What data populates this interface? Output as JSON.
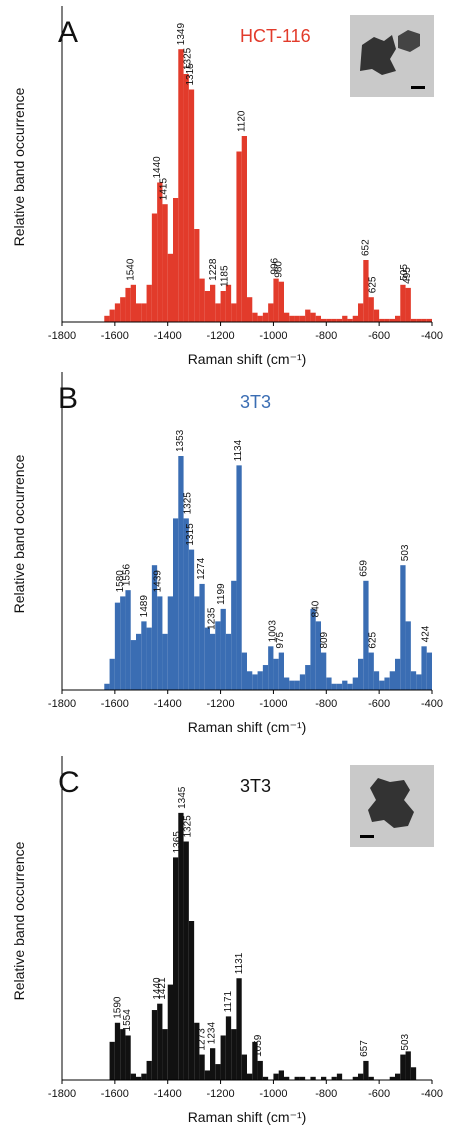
{
  "chart_data": [
    {
      "type": "histogram",
      "panel": "A",
      "title": "HCT-116",
      "color": "#e23b2b",
      "xlabel": "Raman shift (cm⁻¹)",
      "ylabel": "Relative band occurrence",
      "xlim": [
        -1800,
        -400
      ],
      "ylim": [
        0,
        100
      ],
      "xticks": [
        -1800,
        -1600,
        -1400,
        -1200,
        -1000,
        -800,
        -600,
        -400
      ],
      "bins": [
        -1660,
        -1640,
        -1620,
        -1600,
        -1580,
        -1560,
        -1540,
        -1520,
        -1500,
        -1480,
        -1460,
        -1440,
        -1420,
        -1400,
        -1380,
        -1360,
        -1340,
        -1320,
        -1300,
        -1280,
        -1260,
        -1240,
        -1220,
        -1200,
        -1180,
        -1160,
        -1140,
        -1120,
        -1100,
        -1080,
        -1060,
        -1040,
        -1020,
        -1000,
        -980,
        -960,
        -940,
        -920,
        -900,
        -880,
        -860,
        -840,
        -820,
        -800,
        -780,
        -760,
        -740,
        -720,
        -700,
        -680,
        -660,
        -640,
        -620,
        -600,
        -580,
        -560,
        -540,
        -520,
        -500,
        -480,
        -460,
        -440,
        -420,
        -400
      ],
      "values": [
        0,
        2,
        4,
        6,
        8,
        11,
        12,
        6,
        6,
        12,
        35,
        45,
        38,
        22,
        40,
        88,
        80,
        75,
        30,
        14,
        10,
        12,
        6,
        10,
        12,
        6,
        55,
        60,
        8,
        3,
        2,
        3,
        6,
        14,
        13,
        3,
        2,
        2,
        2,
        4,
        3,
        2,
        1,
        1,
        1,
        1,
        2,
        1,
        2,
        6,
        20,
        8,
        4,
        1,
        1,
        1,
        2,
        12,
        11,
        1,
        1,
        1,
        1
      ],
      "annotations": [
        {
          "text": "1540",
          "x": -1540
        },
        {
          "text": "1440",
          "x": -1440
        },
        {
          "text": "1415",
          "x": -1415
        },
        {
          "text": "1349",
          "x": -1349
        },
        {
          "text": "1325",
          "x": -1325
        },
        {
          "text": "1315",
          "x": -1315
        },
        {
          "text": "1228",
          "x": -1228
        },
        {
          "text": "1185",
          "x": -1185
        },
        {
          "text": "1120",
          "x": -1120
        },
        {
          "text": "996",
          "x": -996
        },
        {
          "text": "980",
          "x": -980
        },
        {
          "text": "652",
          "x": -652
        },
        {
          "text": "625",
          "x": -625
        },
        {
          "text": "505",
          "x": -505
        },
        {
          "text": "495",
          "x": -495
        }
      ]
    },
    {
      "type": "histogram",
      "panel": "B",
      "title": "3T3",
      "color": "#3a6db3",
      "xlabel": "Raman shift (cm⁻¹)",
      "ylabel": "Relative band occurrence",
      "xlim": [
        -1800,
        -400
      ],
      "ylim": [
        0,
        100
      ],
      "xticks": [
        -1800,
        -1600,
        -1400,
        -1200,
        -1000,
        -800,
        -600,
        -400
      ],
      "bins": [
        -1660,
        -1640,
        -1620,
        -1600,
        -1580,
        -1560,
        -1540,
        -1520,
        -1500,
        -1480,
        -1460,
        -1440,
        -1420,
        -1400,
        -1380,
        -1360,
        -1340,
        -1320,
        -1300,
        -1280,
        -1260,
        -1240,
        -1220,
        -1200,
        -1180,
        -1160,
        -1140,
        -1120,
        -1100,
        -1080,
        -1060,
        -1040,
        -1020,
        -1000,
        -980,
        -960,
        -940,
        -920,
        -900,
        -880,
        -860,
        -840,
        -820,
        -800,
        -780,
        -760,
        -740,
        -720,
        -700,
        -680,
        -660,
        -640,
        -620,
        -600,
        -580,
        -560,
        -540,
        -520,
        -500,
        -480,
        -460,
        -440,
        -420,
        -400
      ],
      "values": [
        0,
        2,
        10,
        28,
        30,
        32,
        16,
        18,
        22,
        20,
        40,
        30,
        18,
        30,
        55,
        75,
        55,
        45,
        30,
        34,
        20,
        18,
        22,
        26,
        18,
        35,
        72,
        12,
        6,
        5,
        6,
        8,
        14,
        10,
        12,
        4,
        3,
        3,
        5,
        8,
        26,
        22,
        12,
        4,
        2,
        2,
        3,
        2,
        4,
        10,
        35,
        12,
        6,
        3,
        4,
        6,
        10,
        40,
        22,
        6,
        5,
        14,
        12
      ],
      "annotations": [
        {
          "text": "1580",
          "x": -1580
        },
        {
          "text": "1556",
          "x": -1556
        },
        {
          "text": "1489",
          "x": -1489
        },
        {
          "text": "1439",
          "x": -1439
        },
        {
          "text": "1353",
          "x": -1353
        },
        {
          "text": "1325",
          "x": -1325
        },
        {
          "text": "1315",
          "x": -1315
        },
        {
          "text": "1274",
          "x": -1274
        },
        {
          "text": "1235",
          "x": -1235
        },
        {
          "text": "1199",
          "x": -1199
        },
        {
          "text": "1134",
          "x": -1134
        },
        {
          "text": "1003",
          "x": -1003
        },
        {
          "text": "975",
          "x": -975
        },
        {
          "text": "840",
          "x": -840
        },
        {
          "text": "809",
          "x": -809
        },
        {
          "text": "659",
          "x": -659
        },
        {
          "text": "625",
          "x": -625
        },
        {
          "text": "503",
          "x": -503
        },
        {
          "text": "424",
          "x": -424
        }
      ]
    },
    {
      "type": "histogram",
      "panel": "C",
      "title": "3T3",
      "color": "#111111",
      "xlabel": "Raman shift (cm⁻¹)",
      "ylabel": "Relative band occurrence",
      "xlim": [
        -1800,
        -400
      ],
      "ylim": [
        0,
        100
      ],
      "xticks": [
        -1800,
        -1600,
        -1400,
        -1200,
        -1000,
        -800,
        -600,
        -400
      ],
      "bins": [
        -1660,
        -1640,
        -1620,
        -1600,
        -1580,
        -1560,
        -1540,
        -1520,
        -1500,
        -1480,
        -1460,
        -1440,
        -1420,
        -1400,
        -1380,
        -1360,
        -1340,
        -1320,
        -1300,
        -1280,
        -1260,
        -1240,
        -1220,
        -1200,
        -1180,
        -1160,
        -1140,
        -1120,
        -1100,
        -1080,
        -1060,
        -1040,
        -1020,
        -1000,
        -980,
        -960,
        -940,
        -920,
        -900,
        -880,
        -860,
        -840,
        -820,
        -800,
        -780,
        -760,
        -740,
        -720,
        -700,
        -680,
        -660,
        -640,
        -620,
        -600,
        -580,
        -560,
        -540,
        -520,
        -500,
        -480,
        -460,
        -440,
        -420,
        -400
      ],
      "values": [
        0,
        0,
        12,
        18,
        16,
        14,
        2,
        1,
        2,
        6,
        22,
        24,
        16,
        30,
        70,
        84,
        75,
        50,
        18,
        8,
        3,
        10,
        5,
        14,
        20,
        16,
        32,
        8,
        2,
        12,
        6,
        1,
        0,
        2,
        3,
        1,
        0,
        1,
        1,
        0,
        1,
        0,
        1,
        0,
        1,
        2,
        0,
        0,
        1,
        2,
        6,
        1,
        0,
        0,
        0,
        1,
        2,
        8,
        9,
        4,
        0,
        0,
        0
      ],
      "annotations": [
        {
          "text": "1590",
          "x": -1590
        },
        {
          "text": "1554",
          "x": -1554
        },
        {
          "text": "1440",
          "x": -1440
        },
        {
          "text": "1421",
          "x": -1421
        },
        {
          "text": "1365",
          "x": -1365
        },
        {
          "text": "1345",
          "x": -1345
        },
        {
          "text": "1325",
          "x": -1325
        },
        {
          "text": "1273",
          "x": -1273
        },
        {
          "text": "1234",
          "x": -1234
        },
        {
          "text": "1171",
          "x": -1171
        },
        {
          "text": "1131",
          "x": -1131
        },
        {
          "text": "1059",
          "x": -1059
        },
        {
          "text": "657",
          "x": -657
        },
        {
          "text": "503",
          "x": -503
        }
      ]
    }
  ]
}
